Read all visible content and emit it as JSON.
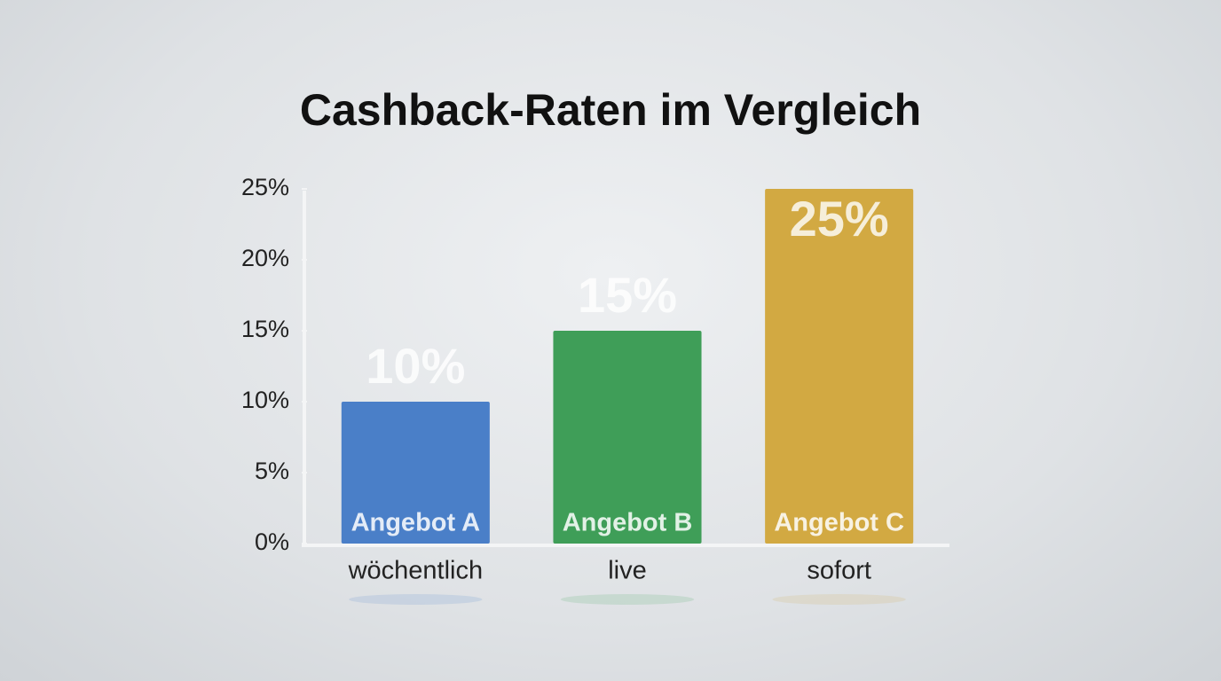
{
  "chart_data": {
    "type": "bar",
    "title": "Cashback-Raten im Vergleich",
    "categories": [
      "wöchentlich",
      "live",
      "sofort"
    ],
    "bar_labels": [
      "Angebot A",
      "Angebot B",
      "Angebot C"
    ],
    "values": [
      10,
      15,
      25
    ],
    "value_labels": [
      "10%",
      "15%",
      "25%"
    ],
    "colors": [
      "#4a7fc8",
      "#3f9e58",
      "#d2a942"
    ],
    "ylim": [
      0,
      25
    ],
    "yticks": [
      {
        "value": 0,
        "label": "0%"
      },
      {
        "value": 5,
        "label": "5%"
      },
      {
        "value": 10,
        "label": "10%"
      },
      {
        "value": 15,
        "label": "15%"
      },
      {
        "value": 20,
        "label": "20%"
      },
      {
        "value": 25,
        "label": "25%"
      }
    ],
    "grid": false
  }
}
